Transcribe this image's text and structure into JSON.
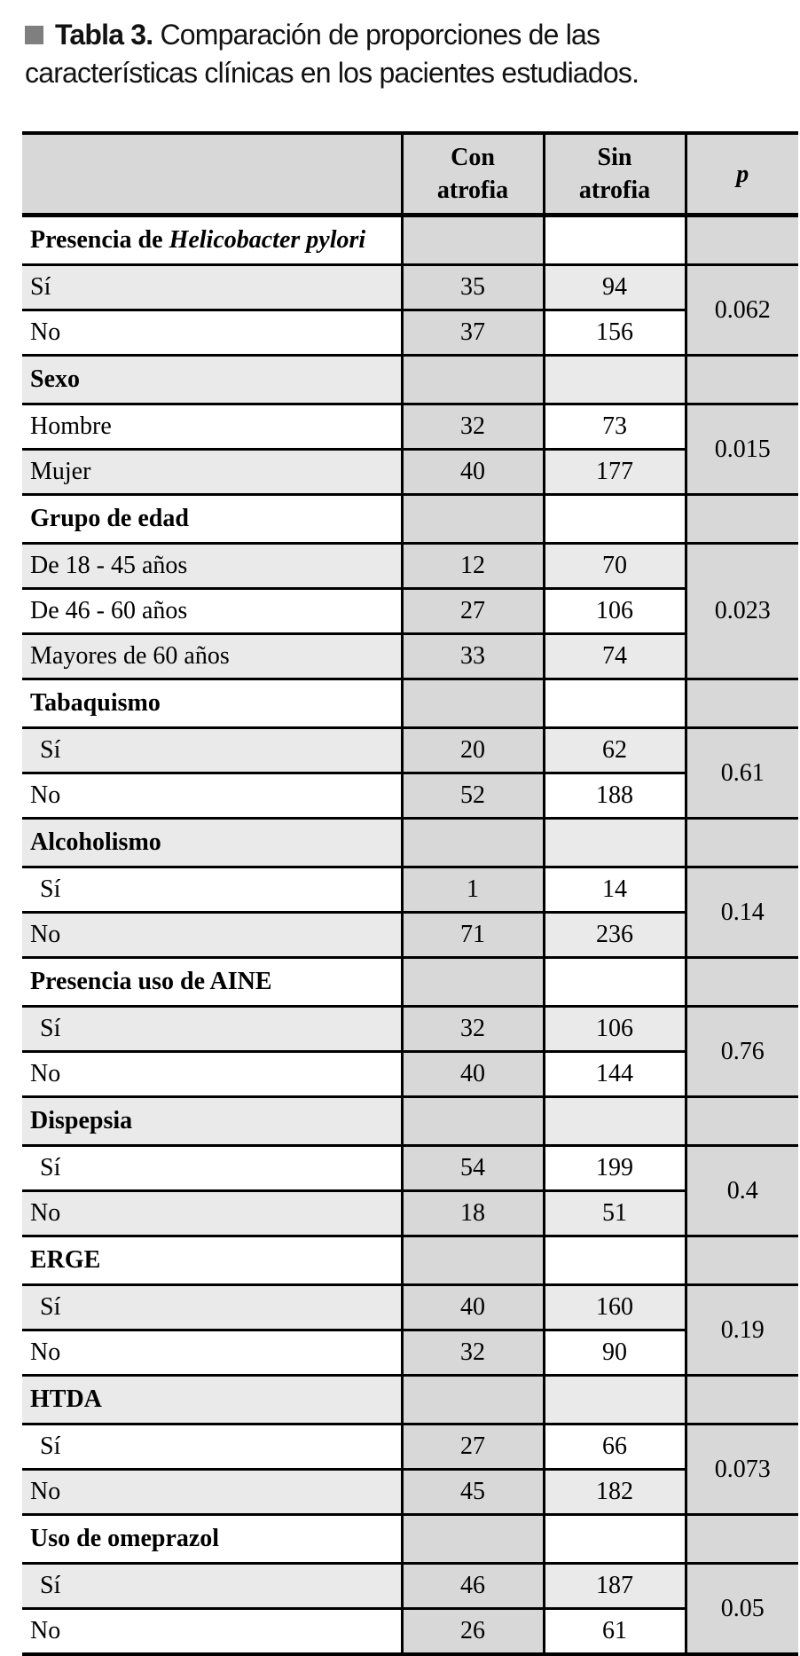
{
  "page": {
    "title_label": "Tabla 3.",
    "title_text": "Comparación de proporciones de las características clínicas en los pacientes estudiados.",
    "bullet_color": "#7f7f7f"
  },
  "table": {
    "header": {
      "feature": "",
      "con": "Con atrofia",
      "sin": "Sin atrofia",
      "p": "p"
    },
    "colors": {
      "column_shade": "#d8d8d8",
      "zebra_shade": "#eaeaea",
      "row_white": "#ffffff",
      "border": "#000000"
    },
    "sections": [
      {
        "category": {
          "prefix": "Presencia de ",
          "italic": "Helicobacter pylori"
        },
        "rows": [
          {
            "label": "Sí",
            "indent": false,
            "con": "35",
            "sin": "94"
          },
          {
            "label": "No",
            "indent": false,
            "con": "37",
            "sin": "156"
          }
        ],
        "p": "0.062"
      },
      {
        "category": {
          "prefix": "Sexo",
          "italic": ""
        },
        "rows": [
          {
            "label": "Hombre",
            "indent": false,
            "con": "32",
            "sin": "73"
          },
          {
            "label": "Mujer",
            "indent": false,
            "con": "40",
            "sin": "177"
          }
        ],
        "p": "0.015"
      },
      {
        "category": {
          "prefix": "Grupo de edad",
          "italic": ""
        },
        "rows": [
          {
            "label": "De 18 - 45 años",
            "indent": false,
            "con": "12",
            "sin": "70"
          },
          {
            "label": "De 46 - 60 años",
            "indent": false,
            "con": "27",
            "sin": "106"
          },
          {
            "label": "Mayores de 60 años",
            "indent": false,
            "con": "33",
            "sin": "74"
          }
        ],
        "p": "0.023"
      },
      {
        "category": {
          "prefix": "Tabaquismo",
          "italic": ""
        },
        "rows": [
          {
            "label": "Sí",
            "indent": true,
            "con": "20",
            "sin": "62"
          },
          {
            "label": "No",
            "indent": false,
            "con": "52",
            "sin": "188"
          }
        ],
        "p": "0.61"
      },
      {
        "category": {
          "prefix": "Alcoholismo",
          "italic": ""
        },
        "rows": [
          {
            "label": "Sí",
            "indent": true,
            "con": "1",
            "sin": "14"
          },
          {
            "label": "No",
            "indent": false,
            "con": "71",
            "sin": "236"
          }
        ],
        "p": "0.14"
      },
      {
        "category": {
          "prefix": "Presencia uso de AINE",
          "italic": ""
        },
        "rows": [
          {
            "label": "Sí",
            "indent": true,
            "con": "32",
            "sin": "106"
          },
          {
            "label": "No",
            "indent": false,
            "con": "40",
            "sin": "144"
          }
        ],
        "p": "0.76"
      },
      {
        "category": {
          "prefix": "Dispepsia",
          "italic": ""
        },
        "rows": [
          {
            "label": "Sí",
            "indent": true,
            "con": "54",
            "sin": "199"
          },
          {
            "label": "No",
            "indent": false,
            "con": "18",
            "sin": "51"
          }
        ],
        "p": "0.4"
      },
      {
        "category": {
          "prefix": "ERGE",
          "italic": ""
        },
        "rows": [
          {
            "label": "Sí",
            "indent": true,
            "con": "40",
            "sin": "160"
          },
          {
            "label": "No",
            "indent": false,
            "con": "32",
            "sin": "90"
          }
        ],
        "p": "0.19"
      },
      {
        "category": {
          "prefix": "HTDA",
          "italic": ""
        },
        "rows": [
          {
            "label": "Sí",
            "indent": true,
            "con": "27",
            "sin": "66"
          },
          {
            "label": "No",
            "indent": false,
            "con": "45",
            "sin": "182"
          }
        ],
        "p": "0.073"
      },
      {
        "category": {
          "prefix": "Uso de omeprazol",
          "italic": ""
        },
        "rows": [
          {
            "label": "Sí",
            "indent": true,
            "con": "46",
            "sin": "187"
          },
          {
            "label": "No",
            "indent": false,
            "con": "26",
            "sin": "61"
          }
        ],
        "p": "0.05"
      }
    ]
  }
}
